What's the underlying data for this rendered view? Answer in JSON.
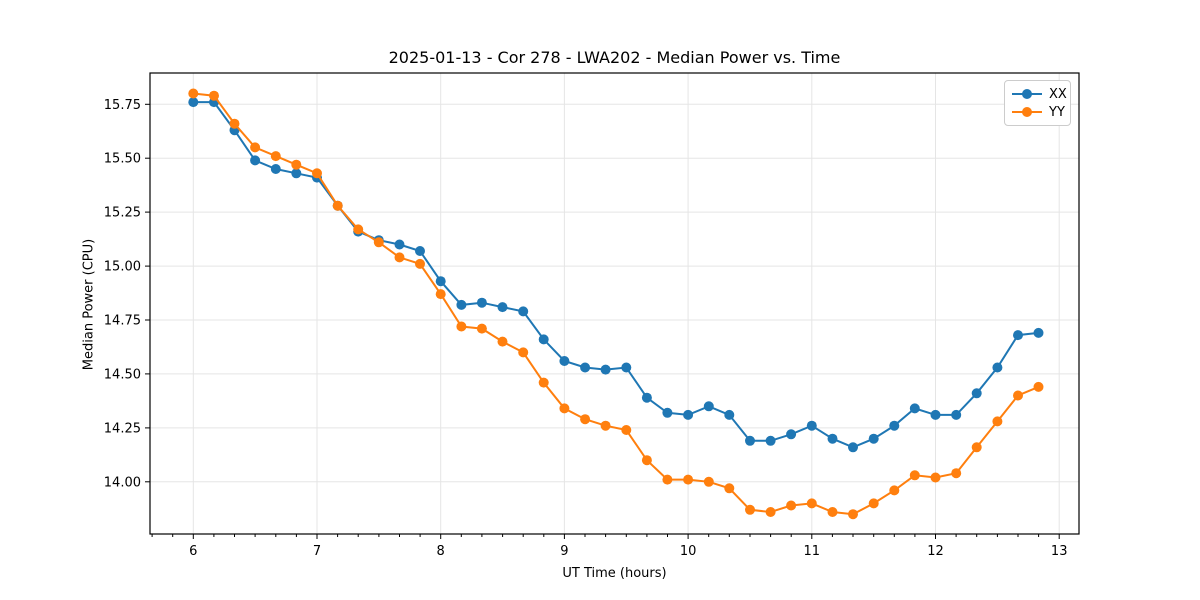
{
  "chart_data": {
    "type": "line",
    "title": "2025-01-13 - Cor 278 - LWA202 - Median Power vs. Time",
    "xlabel": "UT Time (hours)",
    "ylabel": "Median Power (CPU)",
    "xlim": [
      5.65,
      13.16
    ],
    "ylim": [
      13.758,
      15.895
    ],
    "xticks": [
      6,
      7,
      8,
      9,
      10,
      11,
      12,
      13
    ],
    "yticks": [
      14.0,
      14.25,
      14.5,
      14.75,
      15.0,
      15.25,
      15.5,
      15.75
    ],
    "ytick_decimals": 2,
    "x_minor_tick_step_hours": 0.166667,
    "grid": true,
    "legend_position": "upper right",
    "colors": {
      "xx": "#1f77b4",
      "yy": "#ff7f0e"
    },
    "x": [
      6.0,
      6.167,
      6.333,
      6.5,
      6.667,
      6.833,
      7.0,
      7.167,
      7.333,
      7.5,
      7.667,
      7.833,
      8.0,
      8.167,
      8.333,
      8.5,
      8.667,
      8.833,
      9.0,
      9.167,
      9.333,
      9.5,
      9.667,
      9.833,
      10.0,
      10.167,
      10.333,
      10.5,
      10.667,
      10.833,
      11.0,
      11.167,
      11.333,
      11.5,
      11.667,
      11.833,
      12.0,
      12.167,
      12.333,
      12.5,
      12.667,
      12.833
    ],
    "series": [
      {
        "name": "XX",
        "color": "#1f77b4",
        "marker": "circle",
        "values": [
          15.76,
          15.76,
          15.63,
          15.49,
          15.45,
          15.43,
          15.41,
          15.28,
          15.16,
          15.12,
          15.1,
          15.07,
          14.93,
          14.82,
          14.83,
          14.81,
          14.79,
          14.66,
          14.56,
          14.53,
          14.52,
          14.53,
          14.39,
          14.32,
          14.31,
          14.35,
          14.31,
          14.19,
          14.19,
          14.22,
          14.26,
          14.2,
          14.16,
          14.2,
          14.26,
          14.34,
          14.31,
          14.31,
          14.41,
          14.53,
          14.68,
          14.69
        ]
      },
      {
        "name": "YY",
        "color": "#ff7f0e",
        "marker": "circle",
        "values": [
          15.8,
          15.79,
          15.66,
          15.55,
          15.51,
          15.47,
          15.43,
          15.28,
          15.17,
          15.11,
          15.04,
          15.01,
          14.87,
          14.72,
          14.71,
          14.65,
          14.6,
          14.46,
          14.34,
          14.29,
          14.26,
          14.24,
          14.1,
          14.01,
          14.01,
          14.0,
          13.97,
          13.87,
          13.86,
          13.89,
          13.9,
          13.86,
          13.85,
          13.9,
          13.96,
          14.03,
          14.02,
          14.04,
          14.16,
          14.28,
          14.4,
          14.44
        ]
      }
    ]
  }
}
